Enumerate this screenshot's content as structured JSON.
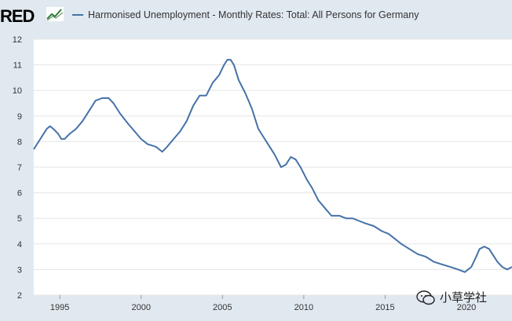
{
  "header": {
    "logo_text": "RED",
    "legend_label": "Harmonised Unemployment - Monthly Rates: Total: All Persons for Germany"
  },
  "watermark": {
    "text": "小草学社",
    "icon": "wechat-icon"
  },
  "colors": {
    "series": "#4572a7",
    "plot_bg": "#ffffff",
    "page_bg": "#e1e9f0",
    "grid": "#e6e6e6"
  },
  "chart_data": {
    "type": "line",
    "title": "",
    "xlabel": "",
    "ylabel": "",
    "xlim": [
      1993.4,
      2022.8
    ],
    "ylim": [
      2,
      12
    ],
    "grid": true,
    "legend_placement": "top",
    "x_ticks": [
      1995,
      2000,
      2005,
      2010,
      2015,
      2020
    ],
    "y_ticks": [
      2,
      3,
      4,
      5,
      6,
      7,
      8,
      9,
      10,
      11,
      12
    ],
    "series": [
      {
        "name": "Harmonised Unemployment - Monthly Rates: Total: All Persons for Germany",
        "x": [
          1993.4,
          1993.8,
          1994.2,
          1994.4,
          1994.6,
          1994.9,
          1995.1,
          1995.3,
          1995.6,
          1996.0,
          1996.4,
          1996.8,
          1997.2,
          1997.6,
          1998.0,
          1998.3,
          1998.7,
          1999.2,
          1999.6,
          2000.0,
          2000.4,
          2000.9,
          2001.3,
          2001.6,
          2002.0,
          2002.4,
          2002.8,
          2003.2,
          2003.6,
          2004.0,
          2004.4,
          2004.8,
          2005.1,
          2005.3,
          2005.5,
          2005.7,
          2006.0,
          2006.4,
          2006.8,
          2007.2,
          2007.5,
          2007.8,
          2008.2,
          2008.6,
          2008.9,
          2009.2,
          2009.5,
          2009.8,
          2010.2,
          2010.5,
          2010.9,
          2011.3,
          2011.7,
          2012.2,
          2012.6,
          2013.0,
          2013.4,
          2013.8,
          2014.3,
          2014.8,
          2015.2,
          2015.6,
          2016.0,
          2016.5,
          2017.0,
          2017.5,
          2018.0,
          2018.5,
          2019.0,
          2019.5,
          2019.9,
          2020.3,
          2020.6,
          2020.8,
          2021.1,
          2021.4,
          2021.6,
          2021.9,
          2022.2,
          2022.5,
          2022.8
        ],
        "y": [
          7.7,
          8.1,
          8.5,
          8.6,
          8.5,
          8.3,
          8.1,
          8.1,
          8.3,
          8.5,
          8.8,
          9.2,
          9.6,
          9.7,
          9.7,
          9.5,
          9.1,
          8.7,
          8.4,
          8.1,
          7.9,
          7.8,
          7.6,
          7.8,
          8.1,
          8.4,
          8.8,
          9.4,
          9.8,
          9.8,
          10.3,
          10.6,
          11.0,
          11.2,
          11.2,
          11.0,
          10.4,
          9.9,
          9.3,
          8.5,
          8.2,
          7.9,
          7.5,
          7.0,
          7.1,
          7.4,
          7.3,
          7.0,
          6.5,
          6.2,
          5.7,
          5.4,
          5.1,
          5.1,
          5.0,
          5.0,
          4.9,
          4.8,
          4.7,
          4.5,
          4.4,
          4.2,
          4.0,
          3.8,
          3.6,
          3.5,
          3.3,
          3.2,
          3.1,
          3.0,
          2.9,
          3.1,
          3.5,
          3.8,
          3.9,
          3.8,
          3.6,
          3.3,
          3.1,
          3.0,
          3.1
        ]
      }
    ]
  }
}
